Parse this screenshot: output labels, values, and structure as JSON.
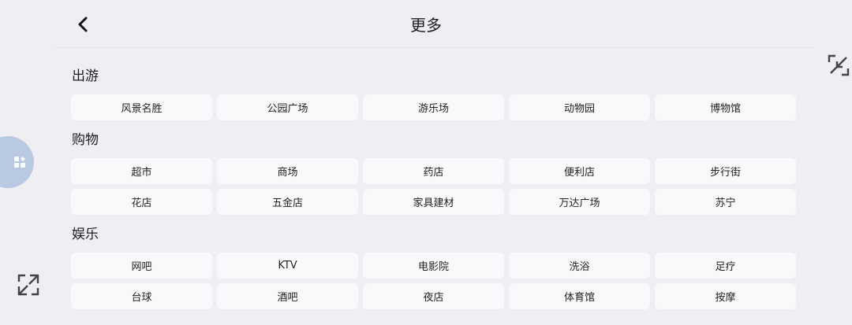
{
  "header": {
    "title": "更多",
    "back_icon": "chevron-left-icon"
  },
  "sections": [
    {
      "title": "出游",
      "items": [
        "风景名胜",
        "公园广场",
        "游乐场",
        "动物园",
        "博物馆"
      ]
    },
    {
      "title": "购物",
      "items": [
        "超市",
        "商场",
        "药店",
        "便利店",
        "步行街",
        "花店",
        "五金店",
        "家具建材",
        "万达广场",
        "苏宁"
      ]
    },
    {
      "title": "娱乐",
      "items": [
        "网吧",
        "KTV",
        "电影院",
        "洗浴",
        "足疗",
        "台球",
        "酒吧",
        "夜店",
        "体育馆",
        "按摩"
      ]
    }
  ],
  "icons": {
    "collapse": "collapse-arrows-icon",
    "expand": "expand-arrows-icon",
    "floating": "apps-grid-icon"
  },
  "colors": {
    "background": "#efeff3",
    "floating_button": "#b9c9e1"
  }
}
